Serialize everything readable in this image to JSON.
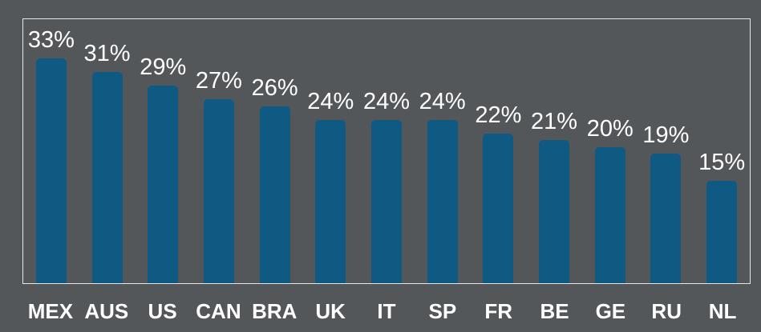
{
  "chart_data": {
    "type": "bar",
    "title": "",
    "xlabel": "",
    "ylabel": "",
    "categories": [
      "MEX",
      "AUS",
      "US",
      "CAN",
      "BRA",
      "UK",
      "IT",
      "SP",
      "FR",
      "BE",
      "GE",
      "RU",
      "NL"
    ],
    "values": [
      33,
      31,
      29,
      27,
      26,
      24,
      24,
      24,
      22,
      21,
      20,
      19,
      15
    ],
    "value_labels": [
      "33%",
      "31%",
      "29%",
      "27%",
      "26%",
      "24%",
      "24%",
      "24%",
      "22%",
      "21%",
      "20%",
      "19%",
      "15%"
    ],
    "ylim": [
      0,
      39
    ],
    "grid": false,
    "legend": false,
    "bar_corner_radius": 5
  },
  "colors": {
    "background": "#54575A",
    "bar": "#0F5A82",
    "text": "#FFFFFF",
    "plot_border": "#E6E6E6"
  }
}
